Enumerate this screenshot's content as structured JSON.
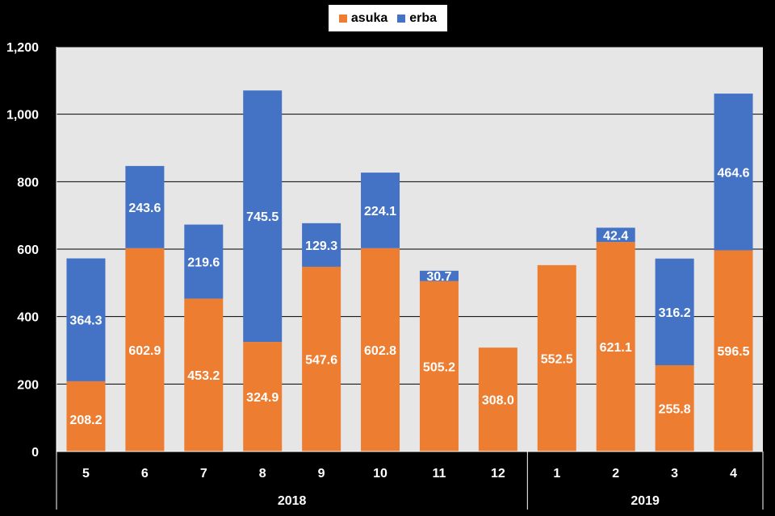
{
  "chart_data": {
    "type": "bar",
    "stacked": true,
    "categories": [
      "5",
      "6",
      "7",
      "8",
      "9",
      "10",
      "11",
      "12",
      "1",
      "2",
      "3",
      "4"
    ],
    "groups": [
      {
        "label": "2018",
        "categories": [
          "5",
          "6",
          "7",
          "8",
          "9",
          "10",
          "11",
          "12"
        ]
      },
      {
        "label": "2019",
        "categories": [
          "1",
          "2",
          "3",
          "4"
        ]
      }
    ],
    "series": [
      {
        "name": "asuka",
        "color": "#ED7D31",
        "values": [
          208.2,
          602.9,
          453.2,
          324.9,
          547.6,
          602.8,
          505.2,
          308.0,
          552.5,
          621.1,
          255.8,
          596.5
        ]
      },
      {
        "name": "erba",
        "color": "#4472C4",
        "values": [
          364.3,
          243.6,
          219.6,
          745.5,
          129.3,
          224.1,
          30.7,
          null,
          null,
          42.4,
          316.2,
          464.6
        ]
      }
    ],
    "data_labels": {
      "asuka": [
        "208.2",
        "602.9",
        "453.2",
        "324.9",
        "547.6",
        "602.8",
        "505.2",
        "308.0",
        "552.5",
        "621.1",
        "255.8",
        "596.5"
      ],
      "erba": [
        "364.3",
        "243.6",
        "219.6",
        "745.5",
        "129.3",
        "224.1",
        "30.7",
        "",
        "",
        "42.4",
        "316.2",
        "464.6"
      ]
    },
    "yticks": [
      "0",
      "200",
      "400",
      "600",
      "800",
      "1,000",
      "1,200"
    ],
    "ylim": [
      0,
      1200
    ],
    "grid": true,
    "legend": "top-center",
    "plot_background": "#E6E6E6"
  },
  "legend": {
    "asuka_label": "asuka",
    "erba_label": "erba"
  }
}
